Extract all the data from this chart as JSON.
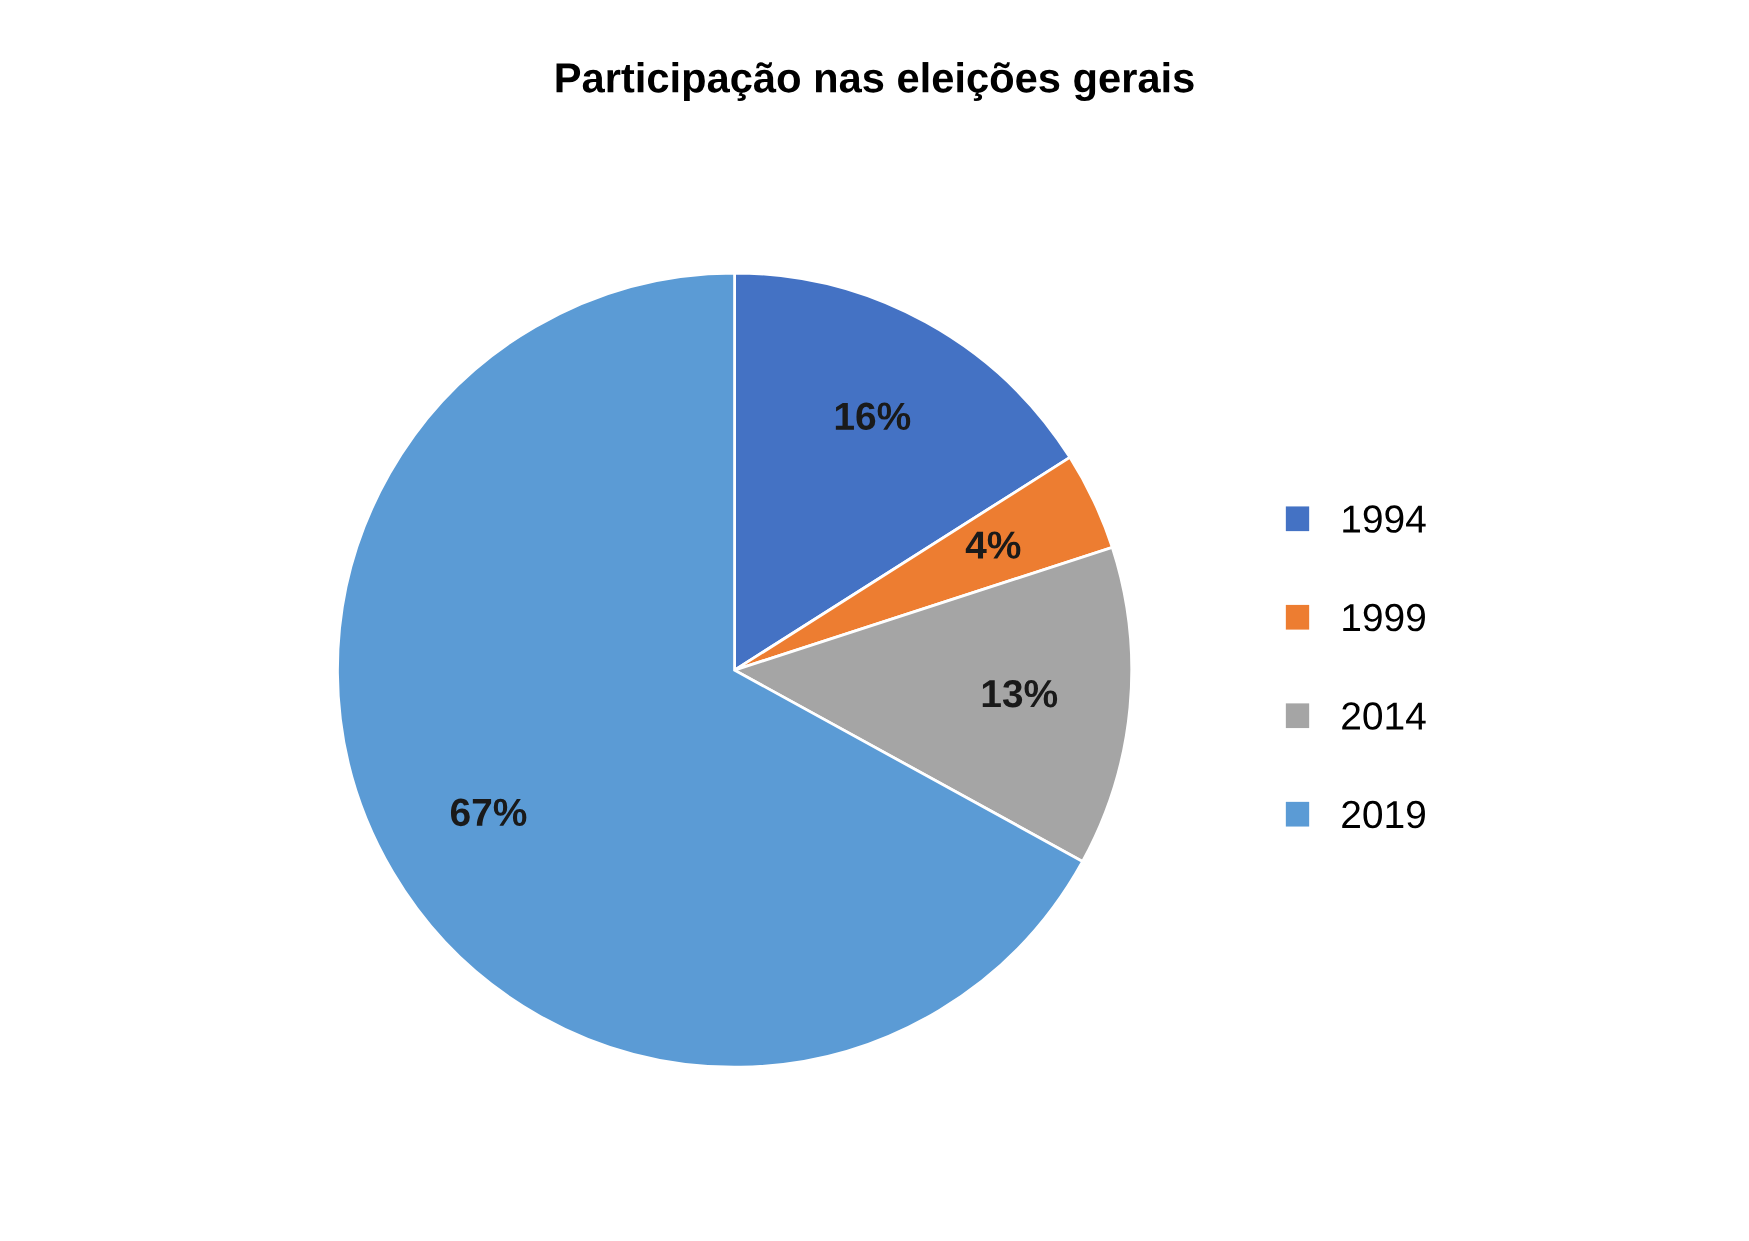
{
  "chart_data": {
    "type": "pie",
    "title": "Participação nas eleições gerais",
    "categories": [
      "1994",
      "1999",
      "2014",
      "2019"
    ],
    "values": [
      16,
      4,
      13,
      67
    ],
    "value_labels": [
      "16%",
      "4%",
      "13%",
      "67%"
    ],
    "colors": [
      "#4472c4",
      "#ed7d31",
      "#a5a5a5",
      "#5b9bd5"
    ],
    "legend": "right"
  }
}
